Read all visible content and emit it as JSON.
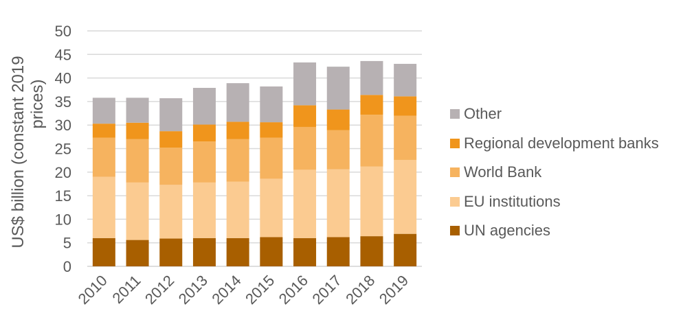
{
  "chart_data": {
    "type": "bar",
    "stacked": true,
    "title": "",
    "xlabel": "",
    "ylabel": "US$ billion (constant 2019 prices)",
    "ylabel_lines": [
      "US$ billion (constant 2019",
      "prices)"
    ],
    "ylim": [
      0,
      50
    ],
    "yticks": [
      0,
      5,
      10,
      15,
      20,
      25,
      30,
      35,
      40,
      45,
      50
    ],
    "grid": true,
    "legend_position": "right",
    "categories": [
      "2010",
      "2011",
      "2012",
      "2013",
      "2014",
      "2015",
      "2016",
      "2017",
      "2018",
      "2019"
    ],
    "series": [
      {
        "name": "UN agencies",
        "color": "#a85f00",
        "values": [
          6.0,
          5.6,
          5.9,
          6.0,
          6.0,
          6.2,
          6.0,
          6.2,
          6.4,
          6.9
        ]
      },
      {
        "name": "EU institutions",
        "color": "#fbcb91",
        "values": [
          13.0,
          12.2,
          11.4,
          11.8,
          12.0,
          12.4,
          14.5,
          14.4,
          14.8,
          15.7
        ]
      },
      {
        "name": "World Bank",
        "color": "#f6b35f",
        "values": [
          8.3,
          9.2,
          7.9,
          8.7,
          9.0,
          8.7,
          9.1,
          8.3,
          11.0,
          9.4
        ]
      },
      {
        "name": "Regional development banks",
        "color": "#f0951c",
        "values": [
          3.0,
          3.5,
          3.5,
          3.6,
          3.7,
          3.3,
          4.6,
          4.4,
          4.2,
          4.1
        ]
      },
      {
        "name": "Other",
        "color": "#b7b1b3",
        "values": [
          5.5,
          5.3,
          7.0,
          7.8,
          8.2,
          7.6,
          9.1,
          9.1,
          7.2,
          6.9
        ]
      }
    ],
    "legend_order": [
      "Other",
      "Regional development banks",
      "World Bank",
      "EU institutions",
      "UN agencies"
    ],
    "colors": {
      "gridline": "#d9d9d9",
      "axis": "#d9d9d9",
      "text": "#595959"
    }
  }
}
